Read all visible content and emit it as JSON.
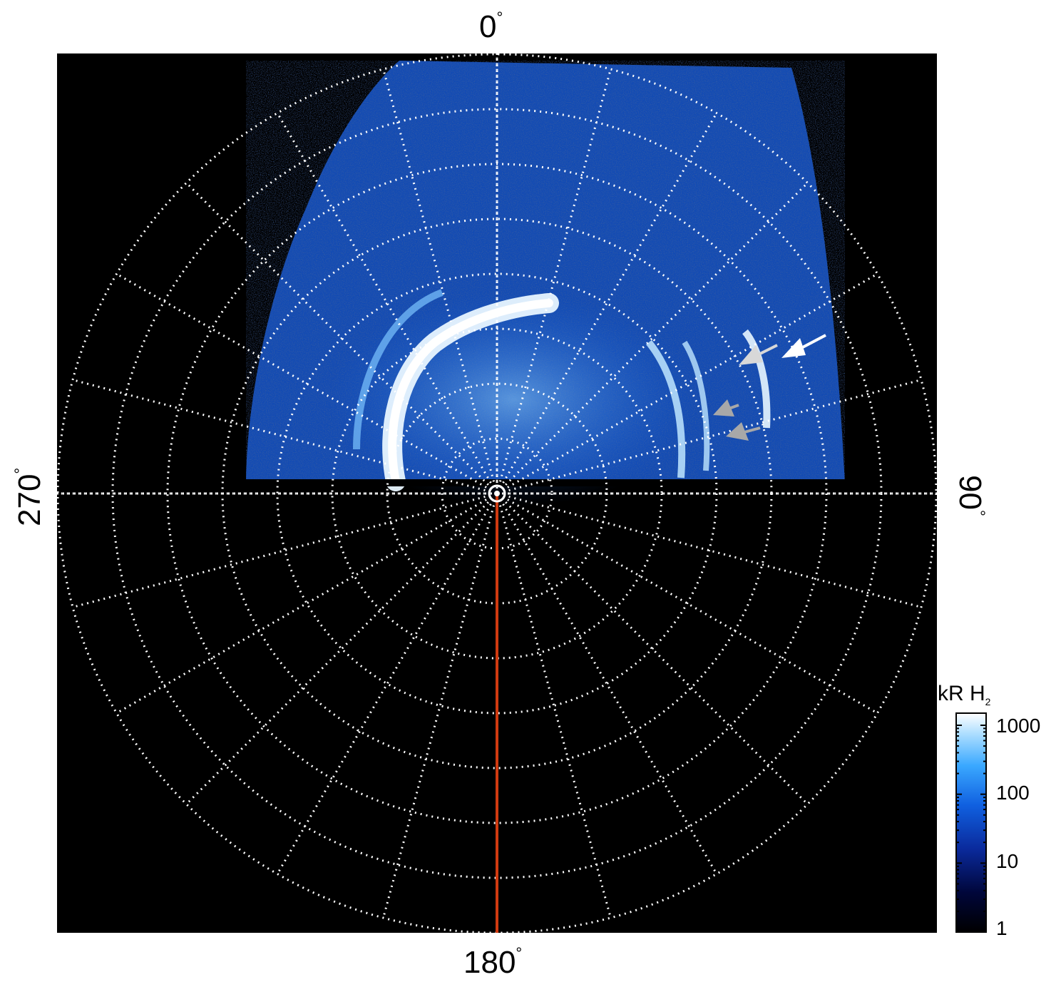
{
  "figure": {
    "azimuth_labels": {
      "top": "0",
      "right": "90",
      "bottom": "180",
      "left": "270",
      "unit": "°"
    },
    "colorbar": {
      "title_main": "kR H",
      "title_sub": "2",
      "ticks": [
        "1000",
        "100",
        "10",
        "1"
      ],
      "scale": "log",
      "range": [
        1,
        1500
      ]
    },
    "colors": {
      "background": "#000000",
      "grid": "#ffffff",
      "meridian_line": "#d03a10",
      "arrow_white": "#ffffff",
      "arrow_light_gray": "#d8d8d8",
      "arrow_gray": "#a8a8a8",
      "colormap": [
        "#000000",
        "#00063a",
        "#0a2a9c",
        "#1060e0",
        "#3aa8ff",
        "#a8dcff",
        "#ffffff"
      ]
    }
  },
  "chart_data": {
    "type": "heatmap",
    "projection": "polar",
    "grid": true,
    "rings": 8,
    "meridians": 24,
    "azimuth_ticks": [
      0,
      90,
      180,
      270
    ],
    "colorbar_label": "kR H2",
    "colorbar_ticks": [
      1000,
      100,
      10,
      1
    ],
    "highlighted_meridian_deg": 180,
    "arrows": [
      {
        "color": "white"
      },
      {
        "color": "light-gray"
      },
      {
        "color": "gray"
      },
      {
        "color": "gray"
      }
    ]
  }
}
